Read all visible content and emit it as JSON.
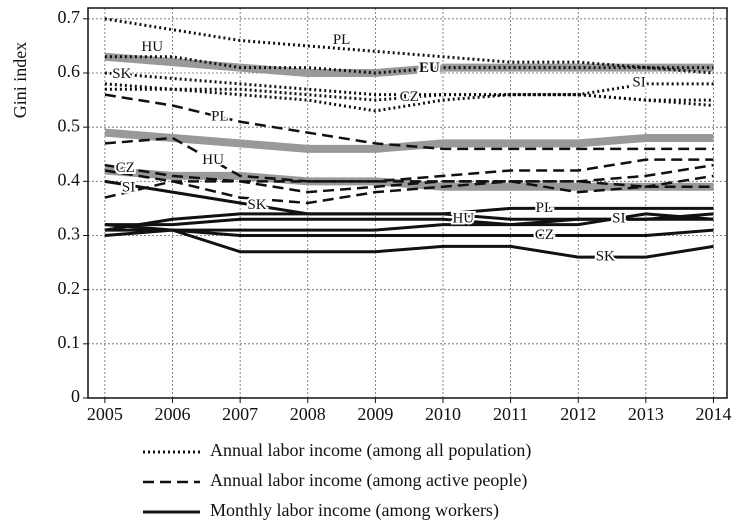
{
  "chart_data": {
    "type": "line",
    "y_label": "Gini index",
    "x": [
      2005,
      2006,
      2007,
      2008,
      2009,
      2010,
      2011,
      2012,
      2013,
      2014
    ],
    "xlim": [
      2004.75,
      2014.2
    ],
    "xticks": [
      2005,
      2006,
      2007,
      2008,
      2009,
      2010,
      2011,
      2012,
      2013,
      2014
    ],
    "ylim": [
      0,
      0.72
    ],
    "yticks": [
      0,
      0.1,
      0.2,
      0.3,
      0.4,
      0.5,
      0.6,
      0.7
    ],
    "grid": true,
    "legend": [
      {
        "label": "Annual labor income (among all population)",
        "style": "dotted"
      },
      {
        "label": "Annual labor income (among active people)",
        "style": "dashed"
      },
      {
        "label": "Monthly labor income (among workers)",
        "style": "solid"
      }
    ],
    "series": [
      {
        "name": "EU",
        "style": "solid",
        "color": "#999999",
        "values": [
          0.63,
          0.62,
          0.61,
          0.6,
          0.6,
          0.61,
          0.61,
          0.61,
          0.61,
          0.61
        ]
      },
      {
        "name": "EU",
        "style": "solid",
        "color": "#999999",
        "values": [
          0.49,
          0.48,
          0.47,
          0.46,
          0.46,
          0.47,
          0.47,
          0.47,
          0.48,
          0.48
        ]
      },
      {
        "name": "EU",
        "style": "solid",
        "color": "#999999",
        "values": [
          0.42,
          0.41,
          0.41,
          0.4,
          0.4,
          0.39,
          0.39,
          0.39,
          0.39,
          0.39
        ]
      },
      {
        "name": "PL",
        "style": "dotted",
        "color": "#111111",
        "values": [
          0.7,
          0.68,
          0.66,
          0.65,
          0.64,
          0.63,
          0.62,
          0.62,
          0.61,
          0.61
        ]
      },
      {
        "name": "HU",
        "style": "dotted",
        "color": "#111111",
        "values": [
          0.63,
          0.63,
          0.61,
          0.61,
          0.6,
          0.61,
          0.61,
          0.61,
          0.61,
          0.6
        ]
      },
      {
        "name": "SK",
        "style": "dotted",
        "color": "#111111",
        "values": [
          0.6,
          0.59,
          0.58,
          0.57,
          0.56,
          0.56,
          0.56,
          0.56,
          0.55,
          0.54
        ]
      },
      {
        "name": "CZ",
        "style": "dotted",
        "color": "#111111",
        "values": [
          0.58,
          0.57,
          0.57,
          0.56,
          0.55,
          0.56,
          0.56,
          0.56,
          0.55,
          0.55
        ]
      },
      {
        "name": "SI",
        "style": "dotted",
        "color": "#111111",
        "values": [
          0.57,
          0.57,
          0.56,
          0.55,
          0.53,
          0.55,
          0.56,
          0.56,
          0.58,
          0.58
        ]
      },
      {
        "name": "PL",
        "style": "dashed",
        "color": "#111111",
        "values": [
          0.56,
          0.54,
          0.51,
          0.49,
          0.47,
          0.46,
          0.46,
          0.46,
          0.46,
          0.46
        ]
      },
      {
        "name": "HU",
        "style": "dashed",
        "color": "#111111",
        "values": [
          0.47,
          0.48,
          0.41,
          0.4,
          0.4,
          0.41,
          0.42,
          0.42,
          0.44,
          0.44
        ]
      },
      {
        "name": "CZ",
        "style": "dashed",
        "color": "#111111",
        "values": [
          0.43,
          0.41,
          0.4,
          0.4,
          0.4,
          0.4,
          0.4,
          0.4,
          0.39,
          0.39
        ]
      },
      {
        "name": "SI",
        "style": "dashed",
        "color": "#111111",
        "values": [
          0.37,
          0.4,
          0.4,
          0.38,
          0.39,
          0.4,
          0.4,
          0.38,
          0.39,
          0.41
        ]
      },
      {
        "name": "SK",
        "style": "dashed",
        "color": "#111111",
        "values": [
          0.42,
          0.4,
          0.37,
          0.36,
          0.38,
          0.39,
          0.4,
          0.4,
          0.41,
          0.43
        ]
      },
      {
        "name": "SK",
        "style": "solid",
        "color": "#111111",
        "values": [
          0.4,
          0.38,
          0.36,
          0.34,
          0.34,
          0.34,
          0.33,
          0.33,
          0.33,
          0.34
        ]
      },
      {
        "name": "PL",
        "style": "solid",
        "color": "#111111",
        "values": [
          0.31,
          0.33,
          0.34,
          0.34,
          0.34,
          0.34,
          0.35,
          0.35,
          0.35,
          0.35
        ]
      },
      {
        "name": "HU",
        "style": "solid",
        "color": "#111111",
        "values": [
          0.32,
          0.32,
          0.33,
          0.33,
          0.33,
          0.33,
          0.32,
          0.32,
          0.34,
          0.33
        ]
      },
      {
        "name": "SI",
        "style": "solid",
        "color": "#111111",
        "values": [
          0.3,
          0.31,
          0.31,
          0.31,
          0.31,
          0.32,
          0.32,
          0.33,
          0.33,
          0.33
        ]
      },
      {
        "name": "CZ",
        "style": "solid",
        "color": "#111111",
        "values": [
          0.32,
          0.31,
          0.3,
          0.3,
          0.3,
          0.3,
          0.3,
          0.3,
          0.3,
          0.31
        ]
      },
      {
        "name": "SK",
        "style": "solid",
        "color": "#111111",
        "values": [
          0.31,
          0.31,
          0.27,
          0.27,
          0.27,
          0.28,
          0.28,
          0.26,
          0.26,
          0.28
        ]
      }
    ]
  }
}
